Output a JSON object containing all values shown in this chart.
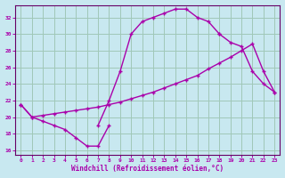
{
  "xlabel": "Windchill (Refroidissement éolien,°C)",
  "bg_color": "#c8e8f0",
  "grid_color": "#a0c8b8",
  "line_color": "#aa00aa",
  "spine_color": "#660066",
  "xlim": [
    -0.5,
    23.5
  ],
  "ylim": [
    15.5,
    33.5
  ],
  "xticks": [
    0,
    1,
    2,
    3,
    4,
    5,
    6,
    7,
    8,
    9,
    10,
    11,
    12,
    13,
    14,
    15,
    16,
    17,
    18,
    19,
    20,
    21,
    22,
    23
  ],
  "yticks": [
    16,
    18,
    20,
    22,
    24,
    26,
    28,
    30,
    32
  ],
  "curve1_x": [
    0,
    1,
    2,
    3,
    4,
    5,
    6,
    7,
    8
  ],
  "curve1_y": [
    21.5,
    20.0,
    19.5,
    19.0,
    18.5,
    17.5,
    16.5,
    16.5,
    19.0
  ],
  "curve2_x": [
    7,
    8,
    9,
    10,
    11,
    12,
    13,
    14,
    15,
    16,
    17,
    18
  ],
  "curve2_y": [
    19.0,
    22.0,
    25.5,
    30.0,
    31.5,
    32.0,
    32.5,
    33.0,
    33.0,
    32.0,
    31.5,
    30.0
  ],
  "curve3_x": [
    0,
    1,
    2,
    3,
    4,
    5,
    6,
    7,
    8,
    9,
    10,
    11,
    12,
    13,
    14,
    15,
    16,
    17,
    18,
    19,
    20,
    21,
    22,
    23
  ],
  "curve3_y": [
    21.5,
    20.0,
    20.2,
    20.4,
    20.6,
    20.8,
    21.0,
    21.2,
    21.5,
    21.8,
    22.2,
    22.6,
    23.0,
    23.5,
    24.0,
    24.5,
    25.0,
    25.8,
    26.5,
    27.2,
    28.0,
    28.8,
    25.5,
    23.0
  ],
  "curve4_x": [
    18,
    19,
    20,
    21,
    22,
    23
  ],
  "curve4_y": [
    30.0,
    29.0,
    28.5,
    25.5,
    24.0,
    23.0
  ]
}
